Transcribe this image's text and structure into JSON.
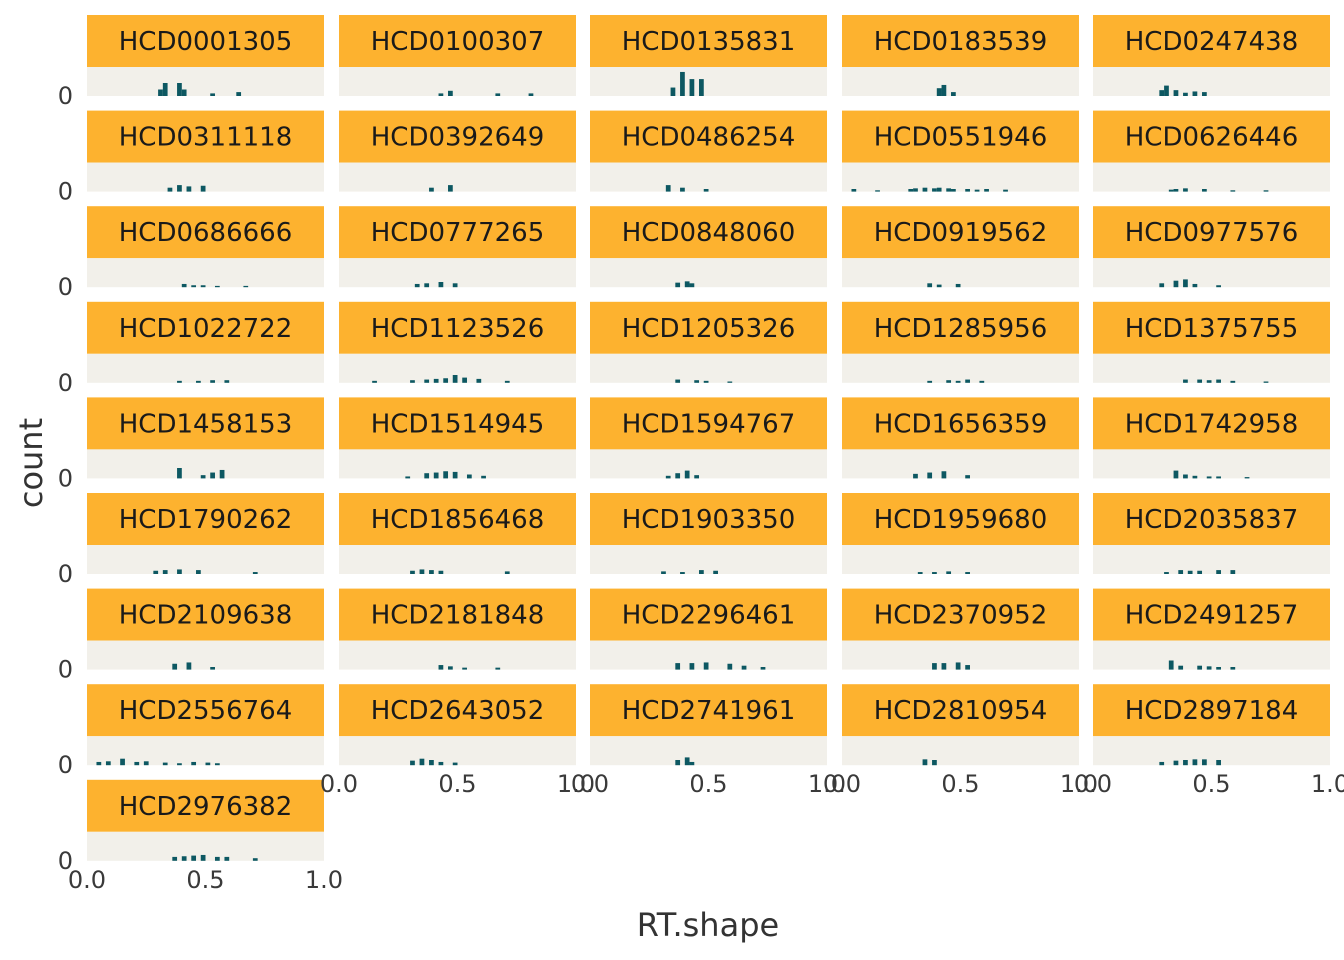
{
  "chart_data": {
    "type": "bar",
    "subtype": "faceted-histogram",
    "xlabel": "RT.shape",
    "ylabel": "count",
    "xlim": [
      0,
      1
    ],
    "x_ticks": [
      "0.0",
      "0.5",
      "1.0"
    ],
    "y_ticks": [
      "0"
    ],
    "bin_width": 0.02,
    "grid": false,
    "colors": {
      "bar": "#0d5862",
      "strip": "#fdb22f",
      "panel": "#f2f0ea"
    },
    "facets": [
      {
        "label": "HCD0001305",
        "bins": [
          [
            0.31,
            1
          ],
          [
            0.33,
            2
          ],
          [
            0.39,
            2
          ],
          [
            0.41,
            1
          ],
          [
            0.53,
            0.4
          ],
          [
            0.64,
            0.6
          ]
        ]
      },
      {
        "label": "HCD0100307",
        "bins": [
          [
            0.43,
            0.4
          ],
          [
            0.47,
            0.8
          ],
          [
            0.67,
            0.4
          ],
          [
            0.81,
            0.4
          ]
        ]
      },
      {
        "label": "HCD0135831",
        "bins": [
          [
            0.35,
            1.3
          ],
          [
            0.39,
            3.7
          ],
          [
            0.43,
            2.6
          ],
          [
            0.47,
            2.6
          ]
        ]
      },
      {
        "label": "HCD0183539",
        "bins": [
          [
            0.41,
            1.2
          ],
          [
            0.43,
            1.7
          ],
          [
            0.47,
            0.6
          ]
        ]
      },
      {
        "label": "HCD0247438",
        "bins": [
          [
            0.29,
            0.9
          ],
          [
            0.31,
            1.6
          ],
          [
            0.35,
            0.9
          ],
          [
            0.39,
            0.5
          ],
          [
            0.43,
            0.7
          ],
          [
            0.47,
            0.6
          ]
        ]
      },
      {
        "label": "HCD0311118",
        "bins": [
          [
            0.35,
            0.6
          ],
          [
            0.39,
            1
          ],
          [
            0.43,
            0.8
          ],
          [
            0.49,
            0.9
          ]
        ]
      },
      {
        "label": "HCD0392649",
        "bins": [
          [
            0.39,
            0.6
          ],
          [
            0.47,
            1
          ]
        ]
      },
      {
        "label": "HCD0486254",
        "bins": [
          [
            0.33,
            1
          ],
          [
            0.39,
            0.6
          ],
          [
            0.49,
            0.4
          ]
        ]
      },
      {
        "label": "HCD0551946",
        "bins": [
          [
            0.05,
            0.4
          ],
          [
            0.15,
            0.2
          ],
          [
            0.29,
            0.4
          ],
          [
            0.31,
            0.5
          ],
          [
            0.35,
            0.6
          ],
          [
            0.39,
            0.5
          ],
          [
            0.41,
            0.6
          ],
          [
            0.45,
            0.5
          ],
          [
            0.47,
            0.4
          ],
          [
            0.53,
            0.4
          ],
          [
            0.57,
            0.3
          ],
          [
            0.61,
            0.4
          ],
          [
            0.69,
            0.3
          ]
        ]
      },
      {
        "label": "HCD0626446",
        "bins": [
          [
            0.33,
            0.3
          ],
          [
            0.35,
            0.4
          ],
          [
            0.39,
            0.5
          ],
          [
            0.47,
            0.4
          ],
          [
            0.59,
            0.2
          ],
          [
            0.73,
            0.2
          ]
        ]
      },
      {
        "label": "HCD0686666",
        "bins": [
          [
            0.41,
            0.5
          ],
          [
            0.45,
            0.3
          ],
          [
            0.49,
            0.3
          ],
          [
            0.55,
            0.2
          ],
          [
            0.67,
            0.2
          ]
        ]
      },
      {
        "label": "HCD0777265",
        "bins": [
          [
            0.33,
            0.5
          ],
          [
            0.37,
            0.6
          ],
          [
            0.43,
            0.8
          ],
          [
            0.49,
            0.6
          ]
        ]
      },
      {
        "label": "HCD0848060",
        "bins": [
          [
            0.37,
            0.7
          ],
          [
            0.41,
            0.9
          ],
          [
            0.43,
            0.6
          ]
        ]
      },
      {
        "label": "HCD0919562",
        "bins": [
          [
            0.37,
            0.6
          ],
          [
            0.41,
            0.4
          ],
          [
            0.49,
            0.5
          ]
        ]
      },
      {
        "label": "HCD0977576",
        "bins": [
          [
            0.29,
            0.6
          ],
          [
            0.35,
            1
          ],
          [
            0.39,
            1.2
          ],
          [
            0.43,
            0.5
          ],
          [
            0.53,
            0.3
          ]
        ]
      },
      {
        "label": "HCD1022722",
        "bins": [
          [
            0.39,
            0.3
          ],
          [
            0.47,
            0.3
          ],
          [
            0.53,
            0.4
          ],
          [
            0.59,
            0.4
          ]
        ]
      },
      {
        "label": "HCD1123526",
        "bins": [
          [
            0.15,
            0.3
          ],
          [
            0.31,
            0.4
          ],
          [
            0.37,
            0.5
          ],
          [
            0.41,
            0.6
          ],
          [
            0.45,
            0.7
          ],
          [
            0.49,
            1.2
          ],
          [
            0.53,
            0.8
          ],
          [
            0.59,
            0.6
          ],
          [
            0.71,
            0.3
          ]
        ]
      },
      {
        "label": "HCD1205326",
        "bins": [
          [
            0.37,
            0.5
          ],
          [
            0.45,
            0.4
          ],
          [
            0.49,
            0.3
          ],
          [
            0.59,
            0.2
          ]
        ]
      },
      {
        "label": "HCD1285956",
        "bins": [
          [
            0.37,
            0.3
          ],
          [
            0.45,
            0.4
          ],
          [
            0.49,
            0.3
          ],
          [
            0.53,
            0.5
          ],
          [
            0.59,
            0.3
          ]
        ]
      },
      {
        "label": "HCD1375755",
        "bins": [
          [
            0.39,
            0.5
          ],
          [
            0.45,
            0.5
          ],
          [
            0.49,
            0.4
          ],
          [
            0.53,
            0.5
          ],
          [
            0.59,
            0.3
          ],
          [
            0.73,
            0.2
          ]
        ]
      },
      {
        "label": "HCD1458153",
        "bins": [
          [
            0.39,
            1.6
          ],
          [
            0.49,
            0.5
          ],
          [
            0.53,
            0.9
          ],
          [
            0.57,
            1.3
          ]
        ]
      },
      {
        "label": "HCD1514945",
        "bins": [
          [
            0.29,
            0.3
          ],
          [
            0.37,
            0.8
          ],
          [
            0.41,
            0.9
          ],
          [
            0.45,
            1.1
          ],
          [
            0.49,
            1
          ],
          [
            0.55,
            0.6
          ],
          [
            0.61,
            0.4
          ]
        ]
      },
      {
        "label": "HCD1594767",
        "bins": [
          [
            0.33,
            0.4
          ],
          [
            0.37,
            0.8
          ],
          [
            0.41,
            1.2
          ],
          [
            0.45,
            0.5
          ]
        ]
      },
      {
        "label": "HCD1656359",
        "bins": [
          [
            0.31,
            0.7
          ],
          [
            0.37,
            0.9
          ],
          [
            0.43,
            1.1
          ],
          [
            0.53,
            0.5
          ]
        ]
      },
      {
        "label": "HCD1742958",
        "bins": [
          [
            0.35,
            1.2
          ],
          [
            0.39,
            0.6
          ],
          [
            0.43,
            0.4
          ],
          [
            0.49,
            0.3
          ],
          [
            0.53,
            0.3
          ],
          [
            0.65,
            0.2
          ]
        ]
      },
      {
        "label": "HCD1790262",
        "bins": [
          [
            0.29,
            0.5
          ],
          [
            0.33,
            0.6
          ],
          [
            0.39,
            0.7
          ],
          [
            0.47,
            0.6
          ],
          [
            0.71,
            0.3
          ]
        ]
      },
      {
        "label": "HCD1856468",
        "bins": [
          [
            0.31,
            0.5
          ],
          [
            0.35,
            0.7
          ],
          [
            0.39,
            0.6
          ],
          [
            0.43,
            0.5
          ],
          [
            0.71,
            0.4
          ]
        ]
      },
      {
        "label": "HCD1903350",
        "bins": [
          [
            0.31,
            0.4
          ],
          [
            0.39,
            0.3
          ],
          [
            0.47,
            0.6
          ],
          [
            0.53,
            0.5
          ]
        ]
      },
      {
        "label": "HCD1959680",
        "bins": [
          [
            0.33,
            0.3
          ],
          [
            0.39,
            0.3
          ],
          [
            0.45,
            0.4
          ],
          [
            0.53,
            0.3
          ]
        ]
      },
      {
        "label": "HCD2035837",
        "bins": [
          [
            0.31,
            0.3
          ],
          [
            0.37,
            0.6
          ],
          [
            0.41,
            0.5
          ],
          [
            0.45,
            0.5
          ],
          [
            0.53,
            0.6
          ],
          [
            0.59,
            0.6
          ]
        ]
      },
      {
        "label": "HCD2109638",
        "bins": [
          [
            0.37,
            0.9
          ],
          [
            0.43,
            1.1
          ],
          [
            0.53,
            0.4
          ]
        ]
      },
      {
        "label": "HCD2181848",
        "bins": [
          [
            0.43,
            0.7
          ],
          [
            0.47,
            0.5
          ],
          [
            0.53,
            0.3
          ],
          [
            0.67,
            0.3
          ]
        ]
      },
      {
        "label": "HCD2296461",
        "bins": [
          [
            0.37,
            1
          ],
          [
            0.43,
            1
          ],
          [
            0.49,
            1.1
          ],
          [
            0.59,
            0.9
          ],
          [
            0.65,
            0.6
          ],
          [
            0.73,
            0.4
          ]
        ]
      },
      {
        "label": "HCD2370952",
        "bins": [
          [
            0.39,
            1
          ],
          [
            0.43,
            1
          ],
          [
            0.49,
            1.1
          ],
          [
            0.53,
            0.7
          ]
        ]
      },
      {
        "label": "HCD2491257",
        "bins": [
          [
            0.33,
            1.4
          ],
          [
            0.37,
            0.6
          ],
          [
            0.45,
            0.6
          ],
          [
            0.49,
            0.5
          ],
          [
            0.53,
            0.4
          ],
          [
            0.59,
            0.4
          ]
        ]
      },
      {
        "label": "HCD2556764",
        "bins": [
          [
            0.05,
            0.5
          ],
          [
            0.09,
            0.6
          ],
          [
            0.15,
            1
          ],
          [
            0.21,
            0.5
          ],
          [
            0.25,
            0.6
          ],
          [
            0.33,
            0.4
          ],
          [
            0.39,
            0.3
          ],
          [
            0.45,
            0.5
          ],
          [
            0.51,
            0.4
          ],
          [
            0.55,
            0.3
          ]
        ]
      },
      {
        "label": "HCD2643052",
        "bins": [
          [
            0.31,
            0.7
          ],
          [
            0.35,
            1
          ],
          [
            0.39,
            0.8
          ],
          [
            0.43,
            0.5
          ],
          [
            0.49,
            0.4
          ]
        ]
      },
      {
        "label": "HCD2741961",
        "bins": [
          [
            0.37,
            0.8
          ],
          [
            0.41,
            1.2
          ],
          [
            0.43,
            0.5
          ]
        ]
      },
      {
        "label": "HCD2810954",
        "bins": [
          [
            0.35,
            0.9
          ],
          [
            0.39,
            0.8
          ]
        ]
      },
      {
        "label": "HCD2897184",
        "bins": [
          [
            0.29,
            0.5
          ],
          [
            0.35,
            0.7
          ],
          [
            0.39,
            0.8
          ],
          [
            0.43,
            0.9
          ],
          [
            0.47,
            0.9
          ],
          [
            0.53,
            0.8
          ]
        ]
      },
      {
        "label": "HCD2976382",
        "bins": [
          [
            0.37,
            0.6
          ],
          [
            0.41,
            0.7
          ],
          [
            0.45,
            0.8
          ],
          [
            0.49,
            0.9
          ],
          [
            0.55,
            0.6
          ],
          [
            0.59,
            0.6
          ],
          [
            0.71,
            0.4
          ]
        ]
      }
    ]
  }
}
